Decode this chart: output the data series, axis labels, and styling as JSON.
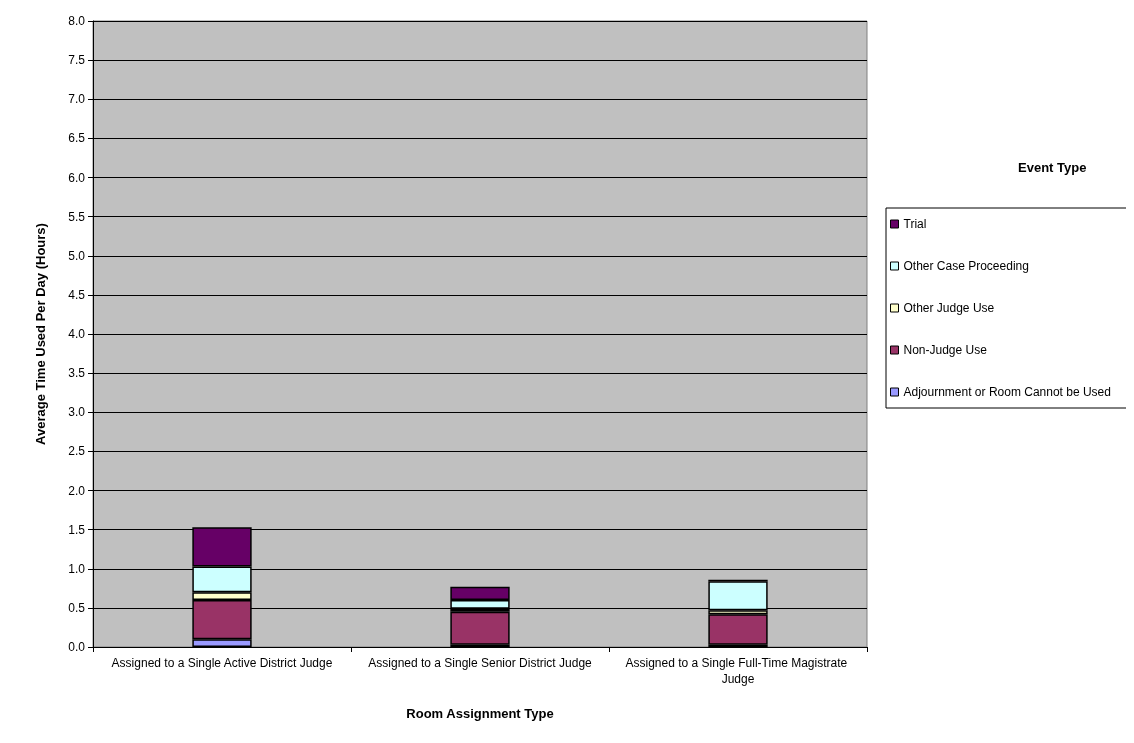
{
  "chart_data": {
    "type": "bar",
    "stacked": true,
    "xlabel": "Room Assignment Type",
    "ylabel": "Average Time Used Per Day (Hours)",
    "legend_title": "Event Type",
    "legend": "right",
    "grid": "y",
    "categories": [
      "Assigned to a Single Active District Judge",
      "Assigned to a Single Senior District Judge",
      "Assigned to a Single Full-Time Magistrate Judge"
    ],
    "ylim": [
      0,
      8
    ],
    "yticks": [
      {
        "value": 0,
        "label": "0.0"
      },
      {
        "value": 0.5,
        "label": "0.5"
      },
      {
        "value": 1,
        "label": "1.0"
      },
      {
        "value": 1.5,
        "label": "1.5"
      },
      {
        "value": 2,
        "label": "2.0"
      },
      {
        "value": 2.5,
        "label": "2.5"
      },
      {
        "value": 3,
        "label": "3.0"
      },
      {
        "value": 3.5,
        "label": "3.5"
      },
      {
        "value": 4,
        "label": "4.0"
      },
      {
        "value": 4.5,
        "label": "4.5"
      },
      {
        "value": 5,
        "label": "5.0"
      },
      {
        "value": 5.5,
        "label": "5.5"
      },
      {
        "value": 6,
        "label": "6.0"
      },
      {
        "value": 6.5,
        "label": "6.5"
      },
      {
        "value": 7,
        "label": "7.0"
      },
      {
        "value": 7.5,
        "label": "7.5"
      },
      {
        "value": 8,
        "label": "8.0"
      }
    ],
    "series": [
      {
        "name": "Adjournment or Room Cannot be Used",
        "color": "#9999ff",
        "values": [
          0.1,
          0.03,
          0.03
        ]
      },
      {
        "name": "Non-Judge Use",
        "color": "#993366",
        "values": [
          0.5,
          0.42,
          0.39
        ]
      },
      {
        "name": "Other Judge Use",
        "color": "#ffffcc",
        "values": [
          0.1,
          0.04,
          0.05
        ]
      },
      {
        "name": "Other Case Proceeding",
        "color": "#ccffff",
        "values": [
          0.33,
          0.11,
          0.37
        ]
      },
      {
        "name": "Trial",
        "color": "#660066",
        "values": [
          0.5,
          0.17,
          0.02
        ]
      }
    ]
  }
}
